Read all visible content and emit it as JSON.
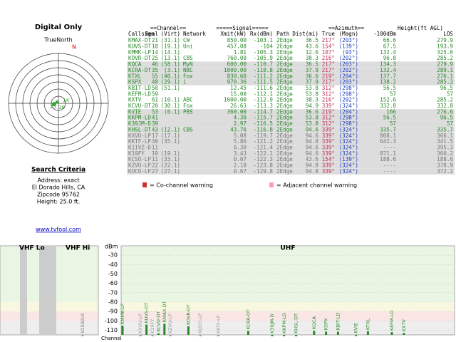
{
  "sidebar": {
    "title": "Digital Only",
    "compass": "TrueNorth",
    "north": "N",
    "ring_labels": [
      "25",
      "18",
      "14"
    ],
    "criteria_title": "Search Criteria",
    "criteria": [
      "Address: exact",
      "El Dorado Hills, CA",
      "Zipcode 95762",
      "Height: 25.0 ft."
    ],
    "link": "www.tvfool.com"
  },
  "table": {
    "groups": [
      "==Channel==",
      "=====Signal=====",
      "==Azimuth==",
      "Height(ft AGL)"
    ],
    "columns": [
      "Callsign",
      "Real",
      "(Virt)",
      "Network",
      "Xmit(kW)",
      "Rx(dBm)",
      "Path",
      "Dist(mi)",
      "True",
      "(Magn)",
      "-100dBm",
      "LOS"
    ],
    "rows": [
      [
        "KMAX-DT",
        21,
        "(31.1)",
        "CW",
        "850.00",
        -103.1,
        "2Edge",
        36.5,
        "217°",
        "(203°)",
        66.6,
        279.9
      ],
      [
        "KUVS-DT",
        18,
        "(19.1)",
        "Uni",
        "457.08",
        -104.0,
        "2Edge",
        43.6,
        "154°",
        "(139°)",
        67.5,
        193.9
      ],
      [
        "KMMK-LP",
        14,
        "(14.1)",
        "",
        "1.81",
        -105.3,
        "2Edge",
        12.6,
        "107°",
        "(93°)",
        132.4,
        325.6
      ],
      [
        "KOVR-DT",
        25,
        "(13.1)",
        "CBS",
        "760.00",
        -105.9,
        "2Edge",
        38.3,
        "216°",
        "(202°)",
        96.8,
        285.2
      ],
      [
        "KQCA",
        46,
        "(58.1)",
        "MyN",
        "600.00",
        -110.7,
        "2Edge",
        36.5,
        "217°",
        "(203°)",
        134.3,
        279.9
      ],
      [
        "KCRA-DT",
        35,
        "(3.1)",
        "NBC",
        "1000.00",
        -110.8,
        "2Edge",
        37.9,
        "217°",
        "(202°)",
        132.4,
        289.1
      ],
      [
        "KTXL",
        55,
        "(40.1)",
        "Fox",
        "830.60",
        -111.2,
        "2Edge",
        36.6,
        "219°",
        "(204°)",
        137.7,
        276.1
      ],
      [
        "KSPX",
        48,
        "(29.1)",
        "i",
        "970.36",
        -111.5,
        "2Edge",
        37.9,
        "217°",
        "(203°)",
        138.2,
        285.2
      ],
      [
        "KBIT-LD",
        50,
        "(51.1)",
        "",
        "12.45",
        -111.6,
        "2Edge",
        53.8,
        "312°",
        "(298°)",
        56.5,
        96.5
      ],
      [
        "KEFM-LD",
        59,
        "",
        "",
        "15.00",
        -112.1,
        "2Edge",
        53.8,
        "312°",
        "(298°)",
        57.0,
        57.0
      ],
      [
        "KXTV",
        61,
        "(10.1)",
        "ABC",
        "1000.00",
        -112.9,
        "2Edge",
        38.3,
        "216°",
        "(202°)",
        152.6,
        285.2
      ],
      [
        "KCVU-DT",
        20,
        "(30.1)",
        "Fox",
        "26.63",
        -113.3,
        "2Edge",
        94.9,
        "339°",
        "(324°)",
        332.8,
        332.8
      ],
      [
        "KVIE",
        53,
        "(6.1)",
        "PBS",
        "360.00",
        -114.7,
        "2Edge",
        36.6,
        "219°",
        "(204°)",
        166.0,
        276.6
      ],
      [
        "KKPM-LD",
        41,
        "",
        "",
        "4.30",
        -115.7,
        "2Edge",
        53.8,
        "312°",
        "(298°)",
        56.5,
        96.5
      ],
      [
        "K39JM-D",
        39,
        "",
        "",
        "2.97",
        -116.5,
        "2Edge",
        53.8,
        "312°",
        "(298°)",
        57.0,
        57.0
      ],
      [
        "KHSL-DT",
        43,
        "(12.1)",
        "CBS",
        "43.76",
        -116.8,
        "2Edge",
        94.6,
        "339°",
        "(324°)",
        335.7,
        335.7
      ],
      [
        "KXVU-LP",
        17,
        "(17.1)",
        "",
        "5.08",
        -119.7,
        "2Edge",
        94.6,
        "339°",
        "(324°)",
        808.1,
        366.1
      ],
      [
        "KKTF-LP",
        30,
        "(35.1)",
        "",
        "5.86",
        -121.2,
        "2Edge",
        94.8,
        "339°",
        "(324°)",
        642.3,
        341.5
      ],
      [
        "K11VZ-D",
        11,
        "",
        "",
        "0.30",
        -121.4,
        "2Edge",
        94.6,
        "339°",
        "(324°)",
        "----",
        395.3
      ],
      [
        "K19FY",
        19,
        "(19.1)",
        "",
        "3.43",
        -122.1,
        "2Edge",
        94.6,
        "339°",
        "(324°)",
        871.1,
        360.2
      ],
      [
        "KCSO-LP",
        11,
        "(33.1)",
        "",
        "0.07",
        -122.3,
        "2Edge",
        43.6,
        "154°",
        "(139°)",
        188.6,
        188.6
      ],
      [
        "KZVU-LP",
        22,
        "(22.1)",
        "",
        "2.10",
        -123.8,
        "2Edge",
        94.8,
        "339°",
        "(324°)",
        "----",
        378.9
      ],
      [
        "KUCO-LP",
        27,
        "(27.1)",
        "",
        "0.67",
        -129.8,
        "2Edge",
        94.8,
        "339°",
        "(324°)",
        "----",
        372.2
      ]
    ]
  },
  "legend": {
    "co": "= Co-channel warning",
    "adj": "= Adjacent channel warning"
  },
  "spectrum": {
    "bands": [
      "VHF Lo",
      "VHF Hi",
      "UHF"
    ],
    "unit": "dBm",
    "ylim": [
      -20,
      -115
    ],
    "yticks": [
      -30,
      -40,
      -50,
      -60,
      -70,
      -80,
      -90,
      -100,
      -110
    ],
    "xlabel": "Channel"
  }
}
